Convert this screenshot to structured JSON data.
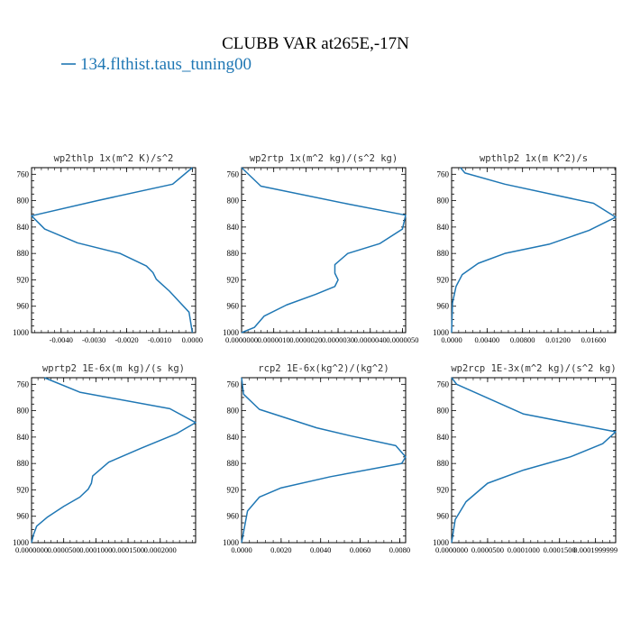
{
  "figure": {
    "title": "CLUBB VAR at265E,-17N",
    "legend_label": "134.flthist.taus_tuning00",
    "line_color": "#1f77b4"
  },
  "chart_data": [
    {
      "type": "line",
      "title": "wp2thlp  1x(m^2 K)/s^2",
      "x_tick_labels": [
        "-0.0040",
        "-0.0030",
        "-0.0020",
        "-0.0010",
        "0.0000"
      ],
      "y_tick_labels": [
        "760",
        "800",
        "840",
        "880",
        "920",
        "960",
        "1000"
      ],
      "xlim": [
        -0.0049,
        0.0001
      ],
      "ylim": [
        1000,
        750
      ],
      "series": [
        {
          "x": [
            0.0,
            -0.0006,
            -0.0029,
            -0.0049,
            -0.0045,
            -0.0035,
            -0.0022,
            -0.0014,
            -0.0012,
            -0.0011,
            -0.0009,
            -0.0007,
            -0.0004,
            -0.0001,
            0.0
          ],
          "y": [
            750,
            775,
            800,
            823,
            843,
            864,
            880,
            899,
            909,
            919,
            928,
            937,
            953,
            969,
            1000
          ]
        }
      ]
    },
    {
      "type": "line",
      "title": "wp2rtp  1x(m^2 kg)/(s^2 kg)",
      "x_tick_labels": [
        "0.0000000",
        "0.0000010",
        "0.0000020",
        "0.0000030",
        "0.0000040",
        "0.0000050"
      ],
      "y_tick_labels": [
        "760",
        "800",
        "840",
        "880",
        "920",
        "960",
        "1000"
      ],
      "xlim": [
        0,
        5.1e-06
      ],
      "ylim": [
        1000,
        750
      ],
      "series": [
        {
          "x": [
            0.0,
            6e-07,
            3.3e-06,
            5.1e-06,
            5e-06,
            4.3e-06,
            3.3e-06,
            2.9e-06,
            2.9e-06,
            3e-06,
            2.9e-06,
            2.3e-06,
            1.4e-06,
            7e-07,
            4e-07,
            0.0
          ],
          "y": [
            750,
            778,
            805,
            822,
            843,
            865,
            880,
            897,
            910,
            920,
            930,
            942,
            958,
            975,
            992,
            1000
          ]
        }
      ]
    },
    {
      "type": "line",
      "title": "wpthlp2  1x(m K^2)/s",
      "x_tick_labels": [
        "0.0000",
        "0.00400",
        "0.00800",
        "0.01200",
        "0.01600"
      ],
      "y_tick_labels": [
        "760",
        "800",
        "840",
        "880",
        "920",
        "960",
        "1000"
      ],
      "xlim": [
        0,
        0.0185
      ],
      "ylim": [
        1000,
        750
      ],
      "series": [
        {
          "x": [
            0.001,
            0.0015,
            0.006,
            0.016,
            0.0185,
            0.0155,
            0.011,
            0.006,
            0.003,
            0.0012,
            0.0005,
            0.0001,
            0.0
          ],
          "y": [
            750,
            758,
            775,
            804,
            825,
            845,
            866,
            880,
            895,
            912,
            930,
            955,
            1000
          ]
        }
      ]
    },
    {
      "type": "line",
      "title": "wprtp2  1E-6x(m kg)/(s kg)",
      "x_tick_labels": [
        "0.0000000",
        "0.0000500",
        "0.0001000",
        "0.0001500",
        "0.0002000"
      ],
      "y_tick_labels": [
        "760",
        "800",
        "840",
        "880",
        "920",
        "960",
        "1000"
      ],
      "xlim": [
        0,
        0.000255
      ],
      "ylim": [
        1000,
        750
      ],
      "series": [
        {
          "x": [
            2e-05,
            7.5e-05,
            0.000215,
            0.000255,
            0.000225,
            0.00017,
            0.00012,
            9.5e-05,
            9.3e-05,
            8.8e-05,
            7.5e-05,
            5e-05,
            2.5e-05,
            8e-06,
            3e-06,
            0.0
          ],
          "y": [
            750,
            772,
            797,
            818,
            835,
            857,
            878,
            899,
            910,
            919,
            931,
            945,
            961,
            975,
            988,
            1000
          ]
        }
      ]
    },
    {
      "type": "line",
      "title": "rcp2  1E-6x(kg^2)/(kg^2)",
      "x_tick_labels": [
        "0.0000",
        "0.0020",
        "0.0040",
        "0.0060",
        "0.0080"
      ],
      "y_tick_labels": [
        "760",
        "800",
        "840",
        "880",
        "920",
        "960",
        "1000"
      ],
      "xlim": [
        0,
        0.0083
      ],
      "ylim": [
        1000,
        750
      ],
      "series": [
        {
          "x": [
            0.0,
            0.0001,
            0.0009,
            0.0038,
            0.0055,
            0.0078,
            0.0083,
            0.0081,
            0.0045,
            0.002,
            0.0009,
            0.0003,
            0.0
          ],
          "y": [
            750,
            775,
            798,
            826,
            838,
            853,
            870,
            880,
            900,
            917,
            931,
            952,
            1000
          ]
        }
      ]
    },
    {
      "type": "line",
      "title": "wp2rcp  1E-3x(m^2 kg)/(s^2 kg)",
      "x_tick_labels": [
        "0.0000000",
        "0.0000500",
        "0.0001000",
        "0.0001500",
        "0.0001999999"
      ],
      "y_tick_labels": [
        "760",
        "800",
        "840",
        "880",
        "920",
        "960",
        "1000"
      ],
      "xlim": [
        0,
        0.000228
      ],
      "ylim": [
        1000,
        750
      ],
      "series": [
        {
          "x": [
            0.0,
            7e-06,
            0.0001,
            0.000228,
            0.00021,
            0.000165,
            0.0001,
            5e-05,
            2e-05,
            5e-06,
            0.0
          ],
          "y": [
            750,
            760,
            805,
            832,
            850,
            870,
            890,
            910,
            938,
            965,
            1000
          ]
        }
      ]
    }
  ]
}
